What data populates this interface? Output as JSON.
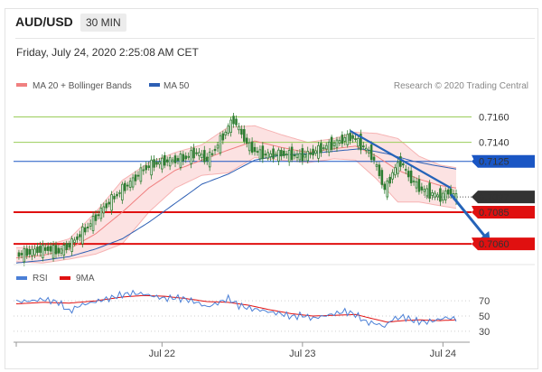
{
  "header": {
    "pair": "AUD/USD",
    "timeframe": "30 MIN",
    "datetime": "Friday, July 24, 2020 2:25:08 AM CET"
  },
  "legend": {
    "ma20_label": "MA 20 + Bollinger Bands",
    "ma50_label": "MA 50",
    "credit": "Research © 2020 Trading Central",
    "rsi_label": "RSI",
    "ma9_label": "9MA"
  },
  "colors": {
    "candle": "#2f7d32",
    "ma20": "#f08080",
    "bollinger_fill": "#fbd8d8",
    "ma50": "#2d5fb4",
    "resistance_green": "#9acd5a",
    "pivot_blue": "#1a56c4",
    "support_red": "#e01010",
    "last_price": "#333333",
    "rsi": "#4a7fd6",
    "rsi_ma9": "#e01010",
    "arrow": "#2563b8"
  },
  "chart_data": [
    {
      "type": "candlestick",
      "title": "AUD/USD 30 MIN",
      "x_ticks": [
        "Jul 22",
        "Jul 23",
        "Jul 24"
      ],
      "ylim": [
        0.7048,
        0.7176
      ],
      "last_price": "0.7097",
      "levels": [
        {
          "value": "0.7160",
          "kind": "resistance",
          "color": "#9acd5a"
        },
        {
          "value": "0.7140",
          "kind": "resistance",
          "color": "#9acd5a"
        },
        {
          "value": "0.7125",
          "kind": "pivot",
          "color": "#1a56c4"
        },
        {
          "value": "0.7085",
          "kind": "support",
          "color": "#e01010"
        },
        {
          "value": "0.7060",
          "kind": "support",
          "color": "#e01010"
        }
      ],
      "price_path": [
        [
          0,
          0.7051
        ],
        [
          4,
          0.7053
        ],
        [
          8,
          0.7055
        ],
        [
          12,
          0.7056
        ],
        [
          16,
          0.7054
        ],
        [
          20,
          0.7059
        ],
        [
          24,
          0.7067
        ],
        [
          28,
          0.7076
        ],
        [
          32,
          0.7086
        ],
        [
          36,
          0.7095
        ],
        [
          40,
          0.7103
        ],
        [
          44,
          0.711
        ],
        [
          48,
          0.7119
        ],
        [
          52,
          0.7123
        ],
        [
          56,
          0.7125
        ],
        [
          60,
          0.7126
        ],
        [
          64,
          0.7128
        ],
        [
          68,
          0.7132
        ],
        [
          72,
          0.7126
        ],
        [
          76,
          0.7138
        ],
        [
          80,
          0.7152
        ],
        [
          82,
          0.7158
        ],
        [
          84,
          0.715
        ],
        [
          88,
          0.7136
        ],
        [
          92,
          0.7131
        ],
        [
          96,
          0.713
        ],
        [
          100,
          0.7131
        ],
        [
          104,
          0.713
        ],
        [
          108,
          0.7129
        ],
        [
          112,
          0.7132
        ],
        [
          116,
          0.7136
        ],
        [
          120,
          0.7139
        ],
        [
          124,
          0.7143
        ],
        [
          127,
          0.7144
        ],
        [
          130,
          0.7138
        ],
        [
          134,
          0.713
        ],
        [
          137,
          0.7115
        ],
        [
          139,
          0.7102
        ],
        [
          142,
          0.7116
        ],
        [
          145,
          0.7125
        ],
        [
          148,
          0.7113
        ],
        [
          152,
          0.7104
        ],
        [
          156,
          0.71
        ],
        [
          160,
          0.7097
        ],
        [
          163,
          0.7101
        ],
        [
          166,
          0.7097
        ]
      ],
      "ma20_path": [
        [
          0,
          0.7049
        ],
        [
          10,
          0.7051
        ],
        [
          20,
          0.7056
        ],
        [
          30,
          0.7068
        ],
        [
          40,
          0.7085
        ],
        [
          50,
          0.7104
        ],
        [
          60,
          0.7118
        ],
        [
          70,
          0.7126
        ],
        [
          80,
          0.7134
        ],
        [
          90,
          0.7141
        ],
        [
          100,
          0.7136
        ],
        [
          110,
          0.7132
        ],
        [
          120,
          0.7135
        ],
        [
          128,
          0.7137
        ],
        [
          136,
          0.7129
        ],
        [
          144,
          0.7118
        ],
        [
          152,
          0.7111
        ],
        [
          160,
          0.7106
        ],
        [
          166,
          0.7104
        ]
      ],
      "bollinger_upper": [
        [
          0,
          0.7057
        ],
        [
          10,
          0.7058
        ],
        [
          20,
          0.7064
        ],
        [
          30,
          0.7085
        ],
        [
          40,
          0.711
        ],
        [
          50,
          0.7124
        ],
        [
          60,
          0.7132
        ],
        [
          70,
          0.7138
        ],
        [
          80,
          0.7152
        ],
        [
          90,
          0.7153
        ],
        [
          100,
          0.7146
        ],
        [
          110,
          0.714
        ],
        [
          120,
          0.7143
        ],
        [
          128,
          0.7148
        ],
        [
          136,
          0.7147
        ],
        [
          144,
          0.7143
        ],
        [
          152,
          0.7129
        ],
        [
          160,
          0.7122
        ],
        [
          166,
          0.712
        ]
      ],
      "bollinger_lower": [
        [
          0,
          0.7046
        ],
        [
          10,
          0.7045
        ],
        [
          20,
          0.7048
        ],
        [
          30,
          0.7052
        ],
        [
          40,
          0.706
        ],
        [
          50,
          0.7085
        ],
        [
          60,
          0.7104
        ],
        [
          70,
          0.7114
        ],
        [
          80,
          0.7116
        ],
        [
          90,
          0.7128
        ],
        [
          100,
          0.7126
        ],
        [
          110,
          0.7124
        ],
        [
          120,
          0.7127
        ],
        [
          128,
          0.7126
        ],
        [
          136,
          0.7111
        ],
        [
          144,
          0.7093
        ],
        [
          152,
          0.7093
        ],
        [
          160,
          0.709
        ],
        [
          166,
          0.7088
        ]
      ],
      "ma50_path": [
        [
          0,
          0.7045
        ],
        [
          10,
          0.7047
        ],
        [
          20,
          0.705
        ],
        [
          30,
          0.7056
        ],
        [
          40,
          0.7064
        ],
        [
          50,
          0.7077
        ],
        [
          60,
          0.7092
        ],
        [
          70,
          0.7107
        ],
        [
          80,
          0.7115
        ],
        [
          90,
          0.7126
        ],
        [
          100,
          0.713
        ],
        [
          110,
          0.7131
        ],
        [
          120,
          0.7133
        ],
        [
          130,
          0.7135
        ],
        [
          140,
          0.7131
        ],
        [
          150,
          0.7125
        ],
        [
          160,
          0.7121
        ],
        [
          166,
          0.7119
        ]
      ],
      "trendline": [
        [
          126,
          0.7149
        ],
        [
          164,
          0.7104
        ]
      ],
      "projection": [
        [
          164,
          0.7099
        ],
        [
          178,
          0.7063
        ]
      ]
    },
    {
      "type": "line",
      "name": "RSI",
      "ylim": [
        18,
        88
      ],
      "y_ticks": [
        70,
        50,
        30
      ],
      "rsi": [
        [
          0,
          69
        ],
        [
          6,
          70
        ],
        [
          10,
          72
        ],
        [
          16,
          68
        ],
        [
          20,
          56
        ],
        [
          24,
          64
        ],
        [
          30,
          69
        ],
        [
          36,
          74
        ],
        [
          40,
          78
        ],
        [
          44,
          80
        ],
        [
          48,
          79
        ],
        [
          52,
          76
        ],
        [
          56,
          73
        ],
        [
          60,
          74
        ],
        [
          64,
          72
        ],
        [
          68,
          68
        ],
        [
          72,
          62
        ],
        [
          76,
          67
        ],
        [
          80,
          73
        ],
        [
          84,
          64
        ],
        [
          88,
          60
        ],
        [
          92,
          58
        ],
        [
          96,
          55
        ],
        [
          100,
          53
        ],
        [
          104,
          49
        ],
        [
          108,
          51
        ],
        [
          112,
          47
        ],
        [
          116,
          50
        ],
        [
          120,
          53
        ],
        [
          124,
          56
        ],
        [
          128,
          52
        ],
        [
          132,
          42
        ],
        [
          136,
          40
        ],
        [
          139,
          36
        ],
        [
          142,
          46
        ],
        [
          146,
          49
        ],
        [
          150,
          44
        ],
        [
          154,
          42
        ],
        [
          158,
          44
        ],
        [
          162,
          48
        ],
        [
          166,
          46
        ]
      ],
      "ma9": [
        [
          0,
          66
        ],
        [
          10,
          68
        ],
        [
          20,
          67
        ],
        [
          30,
          70
        ],
        [
          40,
          75
        ],
        [
          48,
          77
        ],
        [
          56,
          76
        ],
        [
          64,
          73
        ],
        [
          72,
          69
        ],
        [
          80,
          68
        ],
        [
          88,
          64
        ],
        [
          96,
          58
        ],
        [
          104,
          53
        ],
        [
          112,
          50
        ],
        [
          120,
          51
        ],
        [
          128,
          52
        ],
        [
          134,
          47
        ],
        [
          140,
          42
        ],
        [
          146,
          44
        ],
        [
          152,
          45
        ],
        [
          160,
          44
        ],
        [
          166,
          45
        ]
      ]
    }
  ]
}
